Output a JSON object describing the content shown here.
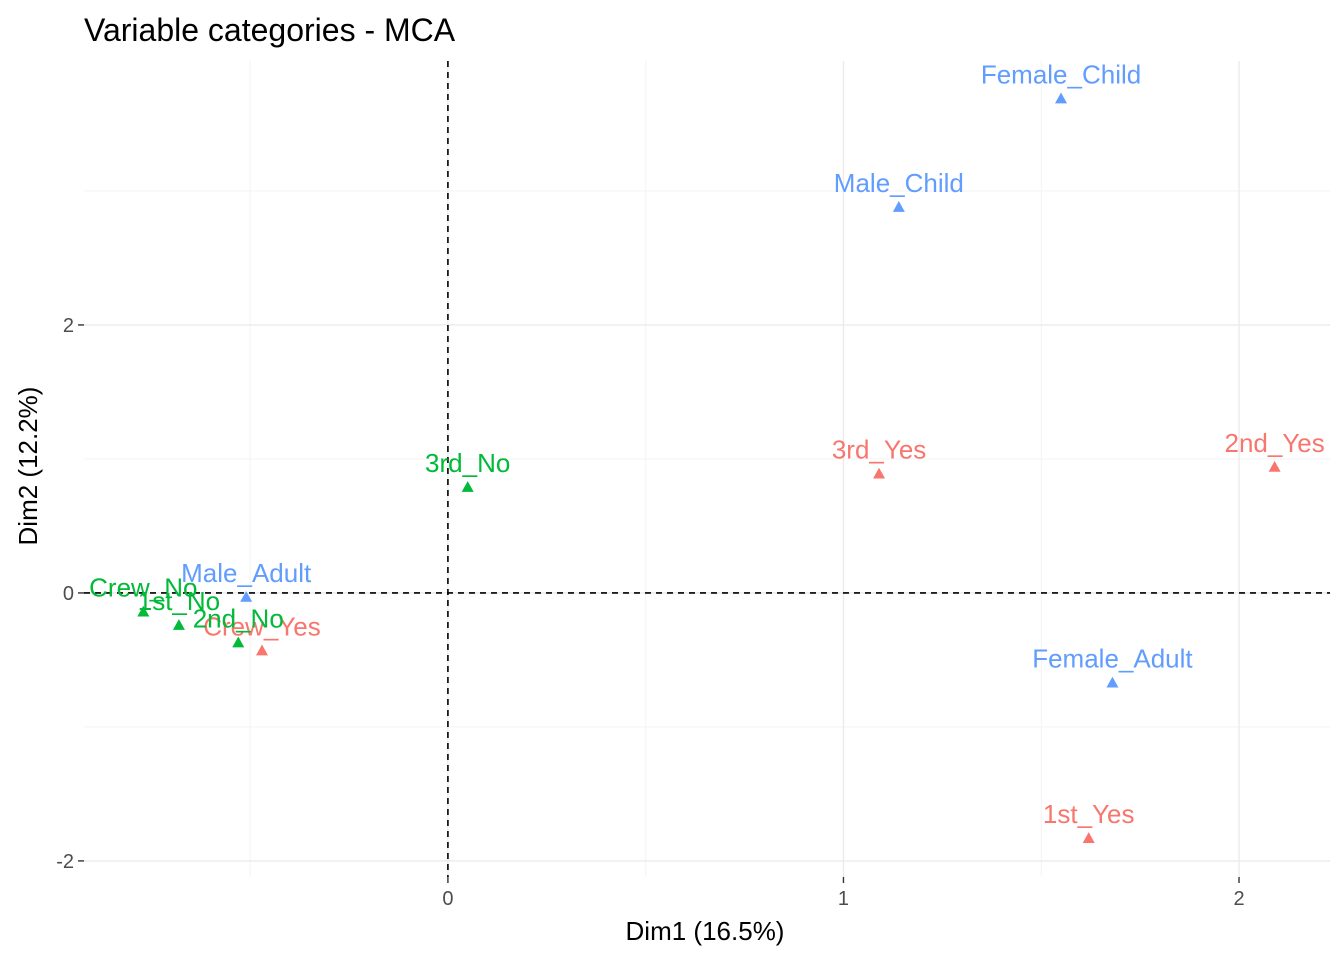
{
  "chart_data": {
    "type": "scatter",
    "title": "Variable categories - MCA",
    "xlabel": "Dim1 (16.5%)",
    "ylabel": "Dim2 (12.2%)",
    "xlim": [
      -0.92,
      2.23
    ],
    "ylim": [
      -2.12,
      3.97
    ],
    "xticks": [
      0,
      1,
      2
    ],
    "yticks": [
      -2,
      0,
      2
    ],
    "xtick_labels": [
      "0",
      "1",
      "2"
    ],
    "ytick_labels": [
      "-2",
      "0",
      "2"
    ],
    "grid": true,
    "reference_lines": {
      "x": 0,
      "y": 0
    },
    "legend": "none",
    "series": [
      {
        "color": "#F8766D",
        "points": [
          {
            "label": "1st_Yes",
            "x": 1.62,
            "y": -1.83
          },
          {
            "label": "2nd_Yes",
            "x": 2.09,
            "y": 0.94
          },
          {
            "label": "3rd_Yes",
            "x": 1.09,
            "y": 0.89
          },
          {
            "label": "Crew_Yes",
            "x": -0.47,
            "y": -0.43
          }
        ]
      },
      {
        "color": "#00BA38",
        "points": [
          {
            "label": "1st_No",
            "x": -0.68,
            "y": -0.24
          },
          {
            "label": "2nd_No",
            "x": -0.53,
            "y": -0.37
          },
          {
            "label": "3rd_No",
            "x": 0.05,
            "y": 0.79
          },
          {
            "label": "Crew_No",
            "x": -0.77,
            "y": -0.14
          }
        ]
      },
      {
        "color": "#619CFF",
        "points": [
          {
            "label": "Female_Adult",
            "x": 1.68,
            "y": -0.67
          },
          {
            "label": "Female_Child",
            "x": 1.55,
            "y": 3.69
          },
          {
            "label": "Male_Adult",
            "x": -0.51,
            "y": -0.03
          },
          {
            "label": "Male_Child",
            "x": 1.14,
            "y": 2.88
          }
        ]
      }
    ]
  }
}
